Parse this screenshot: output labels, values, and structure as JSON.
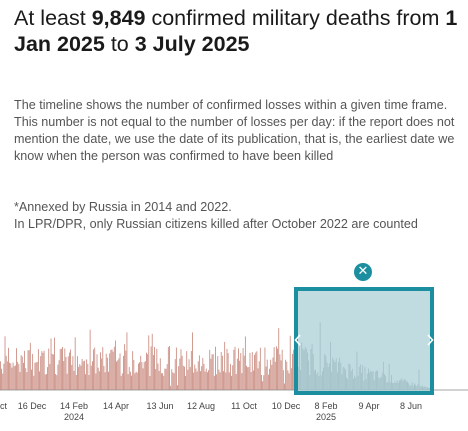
{
  "headline": {
    "prefix": "At least ",
    "count": "9,849",
    "middle": " confirmed military deaths from ",
    "start": "1 Jan 2025",
    "joiner": " to ",
    "end": "3 July 2025"
  },
  "description": "The timeline shows the number of confirmed losses within a given time frame. This number is not equal to the number of losses per day: if the report does not mention the date, we use the date of its publication, that is, the earliest date we know when the person was confirmed to have been killed",
  "notes": {
    "annexed": "*Annexed by Russia in 2014 and 2022.",
    "lpr_dpr": "In LPR/DPR, only Russian citizens killed after October 2022 are counted"
  },
  "selection": {
    "close_icon": "close-icon",
    "left_handle_icon": "chevron-left-icon",
    "right_handle_icon": "chevron-right-icon",
    "color": "#1b8fa0",
    "fill": "#a9cfd6"
  },
  "chart_data": {
    "type": "bar",
    "bar_color": "#c98c80",
    "selected_bar_color": "#8f9aa0",
    "tick_labels": [
      {
        "label": "ct",
        "year": ""
      },
      {
        "label": "16 Dec",
        "year": ""
      },
      {
        "label": "14 Feb",
        "year": "2024"
      },
      {
        "label": "14 Apr",
        "year": ""
      },
      {
        "label": "13 Jun",
        "year": ""
      },
      {
        "label": "12 Aug",
        "year": ""
      },
      {
        "label": "11 Oct",
        "year": ""
      },
      {
        "label": "10 Dec",
        "year": ""
      },
      {
        "label": "8 Feb",
        "year": "2025"
      },
      {
        "label": "9 Apr",
        "year": ""
      },
      {
        "label": "8 Jun",
        "year": ""
      }
    ],
    "selected_range": {
      "start": "1 Jan 2025",
      "end": "3 July 2025"
    }
  }
}
